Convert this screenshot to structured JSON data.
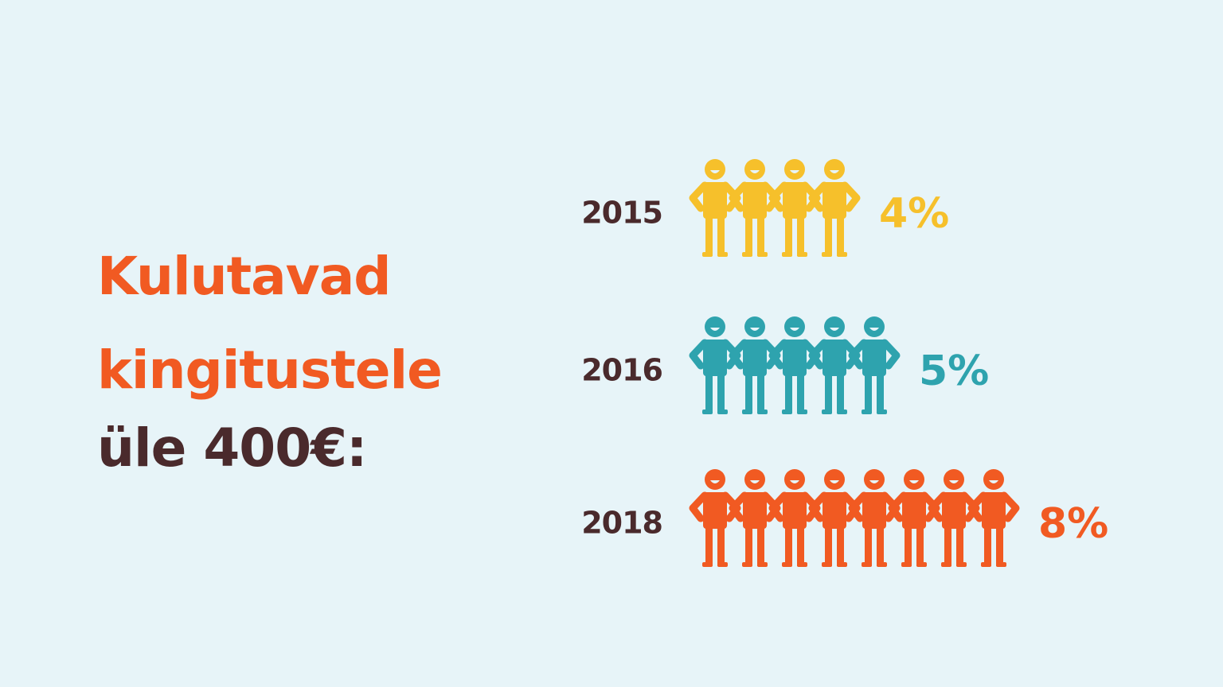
{
  "chart_data": {
    "type": "pictogram",
    "title": "Kulutavad kingitustele",
    "subtitle": "üle 400€:",
    "categories": [
      "2015",
      "2016",
      "2018"
    ],
    "values": [
      4,
      5,
      8
    ],
    "value_labels": [
      "4%",
      "5%",
      "8%"
    ],
    "colors": [
      "#f6c02b",
      "#2ea3ae",
      "#f15a22"
    ]
  }
}
